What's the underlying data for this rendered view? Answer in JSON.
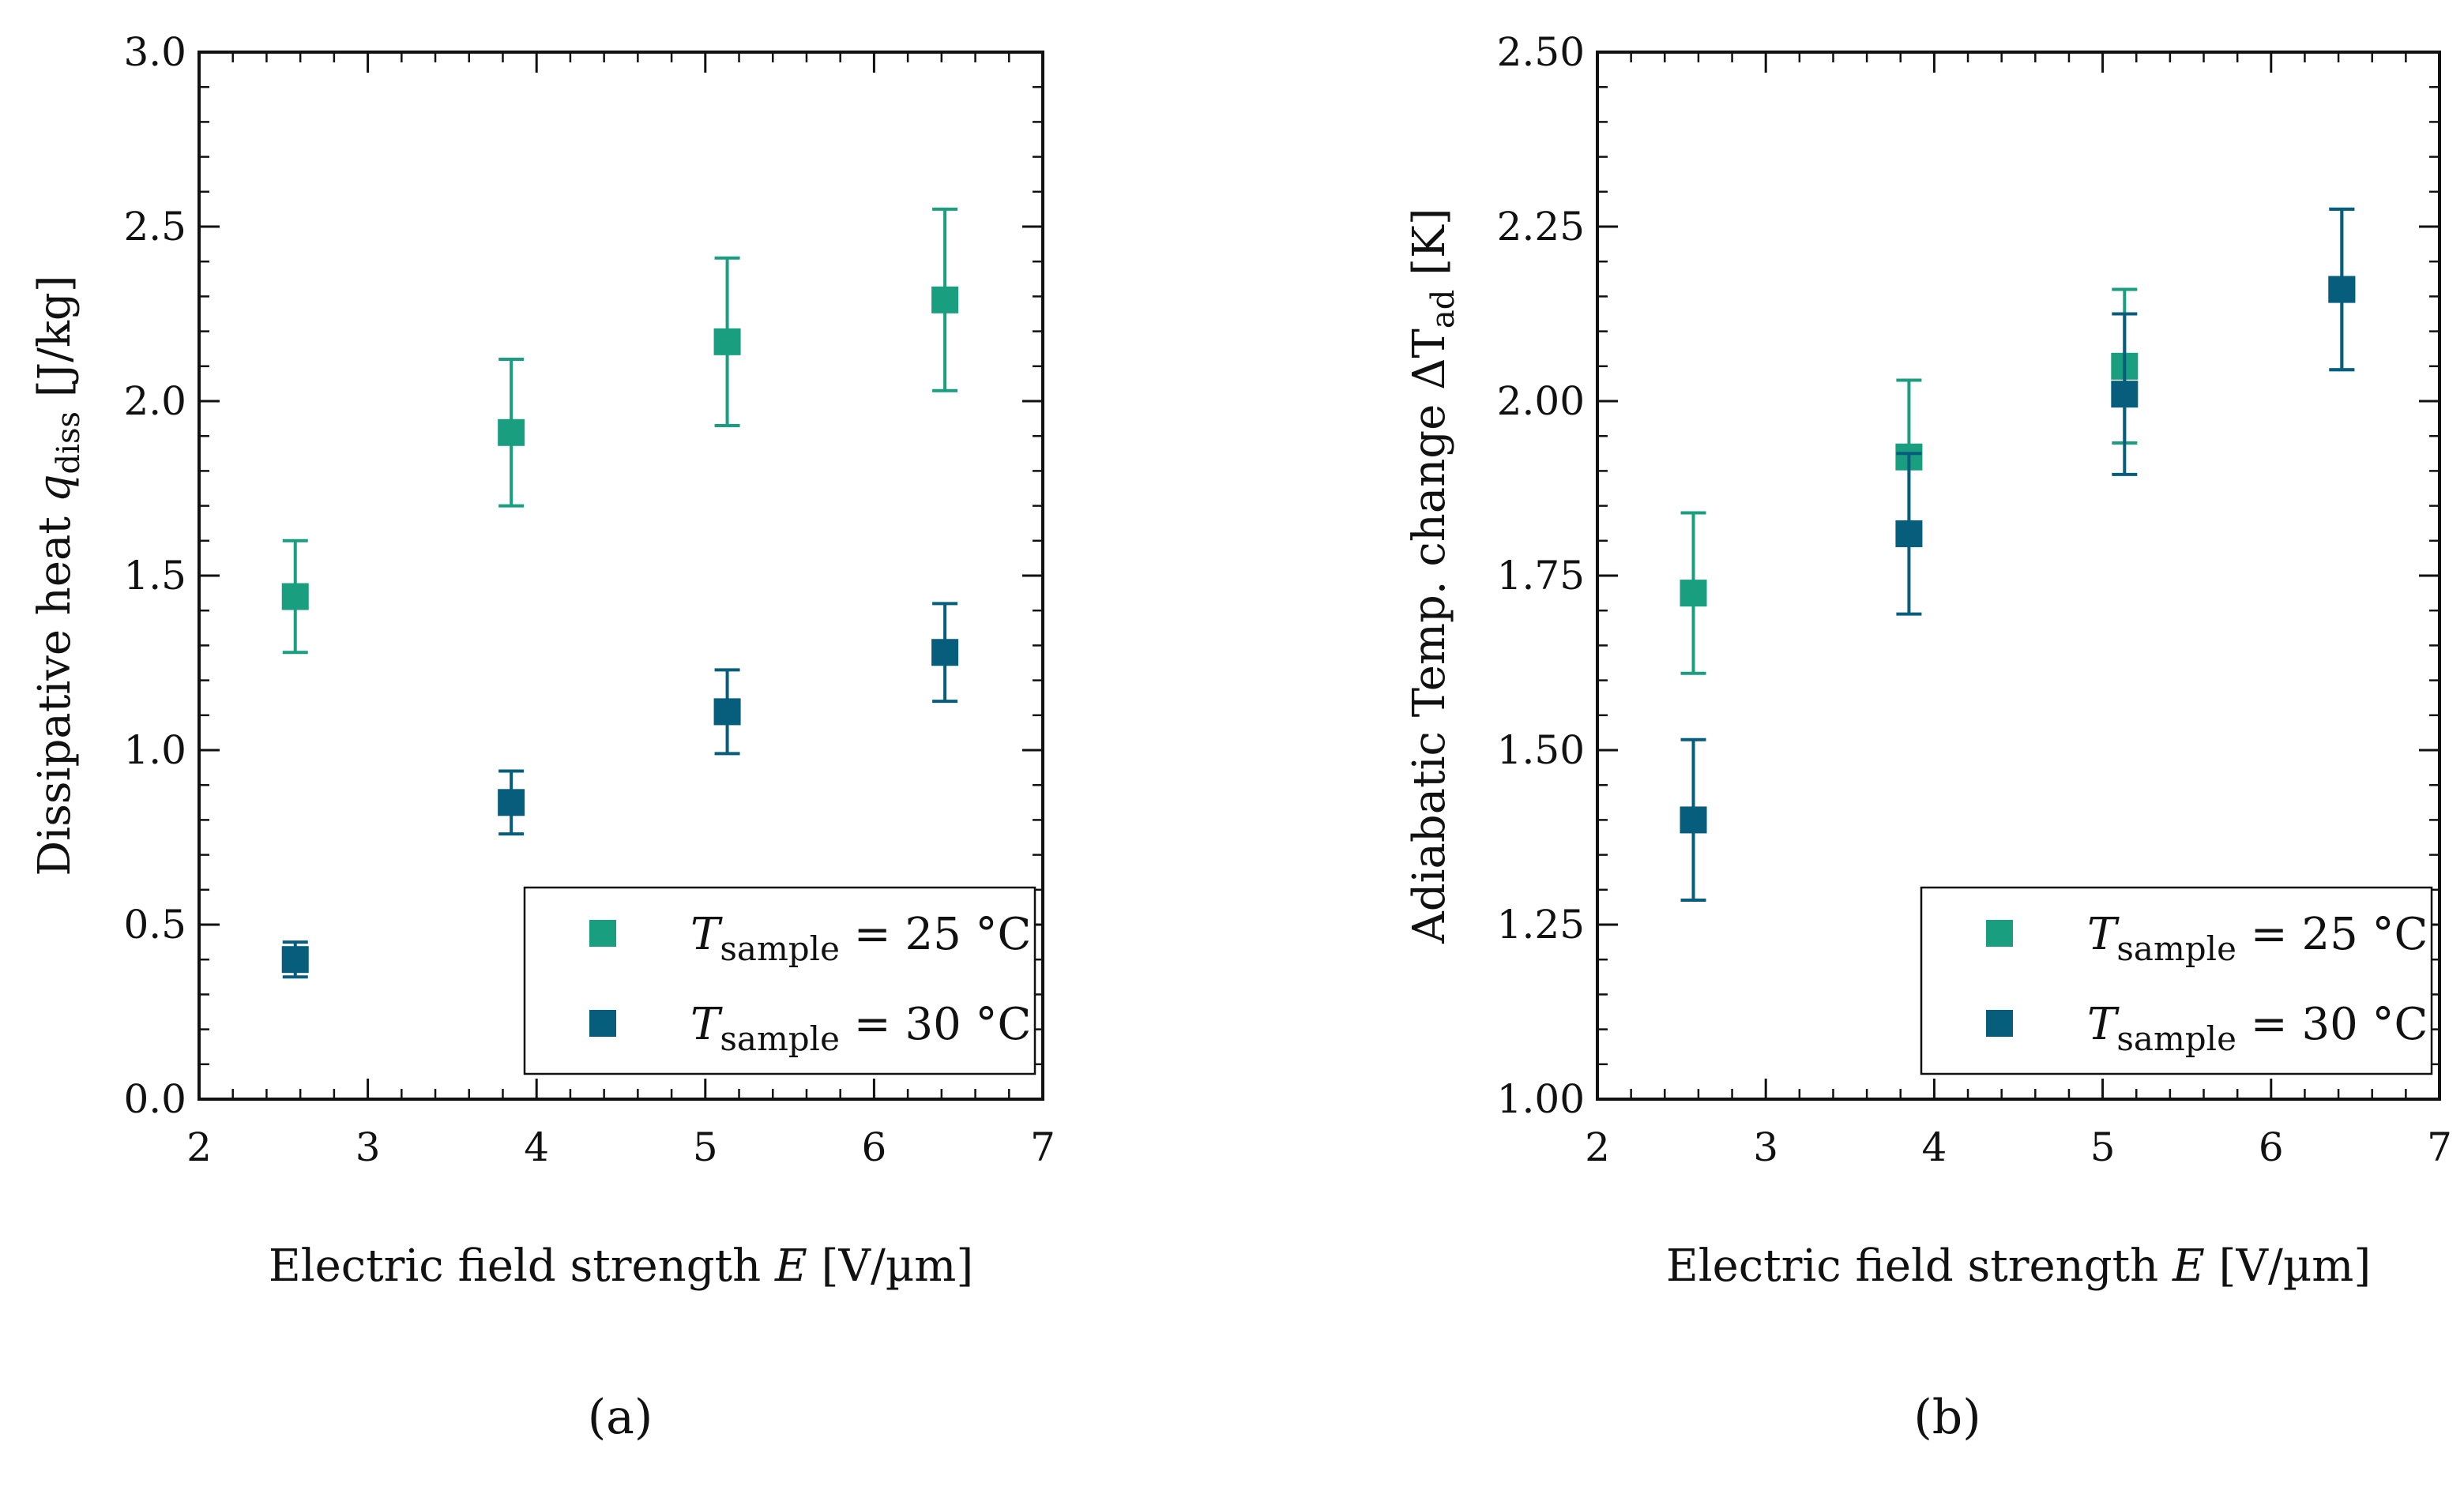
{
  "figure": {
    "panel_labels": [
      "(a)",
      "(b)"
    ]
  },
  "legend_entries": [
    {
      "var": "T",
      "sub": "sample",
      "rest": " = 25 °C"
    },
    {
      "var": "T",
      "sub": "sample",
      "rest": " = 30 °C"
    }
  ],
  "colors": {
    "series_25C": "#1a9e80",
    "series_30C": "#065d7c",
    "axis": "#111111"
  },
  "chart_data": [
    {
      "type": "scatter",
      "panel": "(a)",
      "xlabel": {
        "pre": "Electric field strength ",
        "var": "E",
        "post": " [V/µm]"
      },
      "ylabel": {
        "pre": "Dissipative heat ",
        "var": "q",
        "sub": "diss",
        "post": " [J/kg]"
      },
      "xlim": [
        2,
        7
      ],
      "ylim": [
        0,
        3
      ],
      "xticks": [
        2,
        3,
        4,
        5,
        6,
        7
      ],
      "xtick_labels": [
        "2",
        "3",
        "4",
        "5",
        "6",
        "7"
      ],
      "yticks": [
        0,
        0.5,
        1,
        1.5,
        2,
        2.5,
        3
      ],
      "ytick_labels": [
        "0.0",
        "0.5",
        "1.0",
        "1.5",
        "2.0",
        "2.5",
        "3.0"
      ],
      "legend_position": "bottom-right",
      "series": [
        {
          "name": "T_sample = 25 °C",
          "x": [
            2.57,
            3.85,
            5.13,
            6.42
          ],
          "y": [
            1.44,
            1.91,
            2.17,
            2.29
          ],
          "err": [
            0.16,
            0.21,
            0.24,
            0.26
          ]
        },
        {
          "name": "T_sample = 30 °C",
          "x": [
            2.57,
            3.85,
            5.13,
            6.42
          ],
          "y": [
            0.4,
            0.85,
            1.11,
            1.28
          ],
          "err": [
            0.05,
            0.09,
            0.12,
            0.14
          ]
        }
      ]
    },
    {
      "type": "scatter",
      "panel": "(b)",
      "xlabel": {
        "pre": "Electric field strength ",
        "var": "E",
        "post": " [V/µm]"
      },
      "ylabel": {
        "pre": "Adiabatic Temp. change ΔT",
        "var": "",
        "sub": "ad",
        "post": " [K]"
      },
      "xlim": [
        2,
        7
      ],
      "ylim": [
        1,
        2.5
      ],
      "xticks": [
        2,
        3,
        4,
        5,
        6,
        7
      ],
      "xtick_labels": [
        "2",
        "3",
        "4",
        "5",
        "6",
        "7"
      ],
      "yticks": [
        1,
        1.25,
        1.5,
        1.75,
        2,
        2.25,
        2.5
      ],
      "ytick_labels": [
        "1.00",
        "1.25",
        "1.50",
        "1.75",
        "2.00",
        "2.25",
        "2.50"
      ],
      "legend_position": "bottom-right",
      "series": [
        {
          "name": "T_sample = 25 °C",
          "x": [
            2.57,
            3.85,
            5.13,
            6.42
          ],
          "y": [
            1.725,
            1.92,
            2.05,
            2.16
          ],
          "err": [
            0.115,
            0.11,
            0.11,
            0.115
          ]
        },
        {
          "name": "T_sample = 30 °C",
          "x": [
            2.57,
            3.85,
            5.13,
            6.42
          ],
          "y": [
            1.4,
            1.81,
            2.01,
            2.16
          ],
          "err": [
            0.115,
            0.115,
            0.115,
            0.115
          ]
        }
      ]
    }
  ]
}
